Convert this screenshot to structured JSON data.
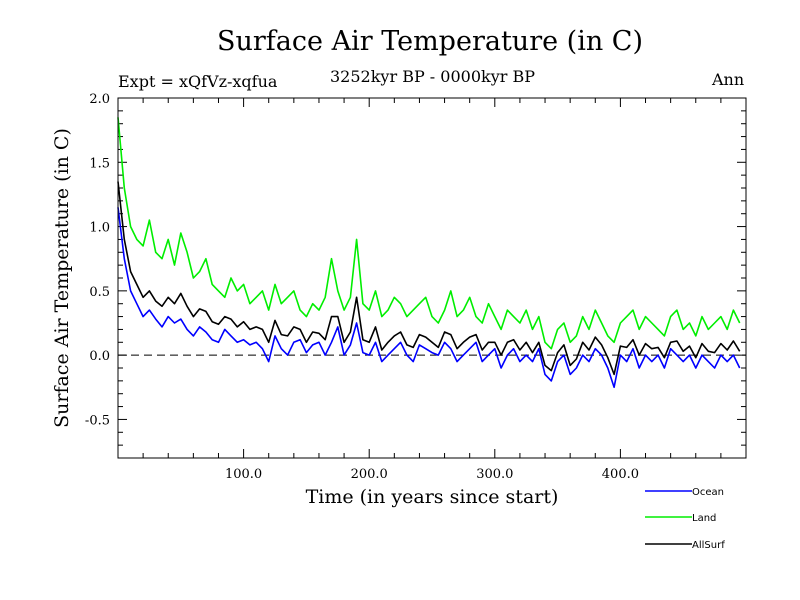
{
  "chart_data": {
    "type": "line",
    "title": "Surface Air Temperature (in C)",
    "experiment": "Expt = xQfVz-xqfua",
    "period": "3252kyr BP - 0000kyr BP",
    "season": "Ann",
    "xlabel": "Time (in years since start)",
    "ylabel": "Surface Air Temperature (in C)",
    "xlim": [
      0,
      500
    ],
    "ylim": [
      -0.8,
      2.0
    ],
    "xticks": [
      100,
      200,
      300,
      400
    ],
    "xtick_labels": [
      "100.0",
      "200.0",
      "300.0",
      "400.0"
    ],
    "yticks": [
      -0.5,
      0.0,
      0.5,
      1.0,
      1.5,
      2.0
    ],
    "ytick_labels": [
      "-0.5",
      "0.0",
      "0.5",
      "1.0",
      "1.5",
      "2.0"
    ],
    "reference_line": 0.0,
    "x": [
      0,
      5,
      10,
      15,
      20,
      25,
      30,
      35,
      40,
      45,
      50,
      55,
      60,
      65,
      70,
      75,
      80,
      85,
      90,
      95,
      100,
      105,
      110,
      115,
      120,
      125,
      130,
      135,
      140,
      145,
      150,
      155,
      160,
      165,
      170,
      175,
      180,
      185,
      190,
      195,
      200,
      205,
      210,
      215,
      220,
      225,
      230,
      235,
      240,
      245,
      250,
      255,
      260,
      265,
      270,
      275,
      280,
      285,
      290,
      295,
      300,
      305,
      310,
      315,
      320,
      325,
      330,
      335,
      340,
      345,
      350,
      355,
      360,
      365,
      370,
      375,
      380,
      385,
      390,
      395,
      400,
      405,
      410,
      415,
      420,
      425,
      430,
      435,
      440,
      445,
      450,
      455,
      460,
      465,
      470,
      475,
      480,
      485,
      490,
      495
    ],
    "series": [
      {
        "name": "Ocean",
        "color": "#0000ff",
        "values": [
          1.15,
          0.75,
          0.5,
          0.4,
          0.3,
          0.35,
          0.28,
          0.22,
          0.3,
          0.25,
          0.28,
          0.2,
          0.15,
          0.22,
          0.18,
          0.12,
          0.1,
          0.2,
          0.15,
          0.1,
          0.12,
          0.08,
          0.1,
          0.05,
          -0.05,
          0.15,
          0.05,
          0.0,
          0.1,
          0.12,
          0.02,
          0.08,
          0.1,
          0.0,
          0.1,
          0.22,
          0.0,
          0.08,
          0.25,
          0.02,
          0.0,
          0.1,
          -0.05,
          0.0,
          0.05,
          0.1,
          0.0,
          -0.05,
          0.08,
          0.05,
          0.02,
          0.0,
          0.1,
          0.05,
          -0.05,
          0.0,
          0.05,
          0.1,
          -0.05,
          0.0,
          0.05,
          -0.1,
          0.0,
          0.05,
          -0.05,
          0.0,
          -0.05,
          0.05,
          -0.15,
          -0.2,
          -0.05,
          0.0,
          -0.15,
          -0.1,
          0.0,
          -0.05,
          0.05,
          0.0,
          -0.1,
          -0.25,
          0.0,
          -0.05,
          0.05,
          -0.1,
          0.0,
          -0.05,
          0.0,
          -0.1,
          0.05,
          0.0,
          -0.05,
          0.0,
          -0.1,
          0.0,
          -0.05,
          -0.1,
          0.0,
          -0.05,
          0.0,
          -0.1
        ]
      },
      {
        "name": "Land",
        "color": "#00ee00",
        "values": [
          1.85,
          1.3,
          1.0,
          0.9,
          0.85,
          1.05,
          0.8,
          0.75,
          0.9,
          0.7,
          0.95,
          0.8,
          0.6,
          0.65,
          0.75,
          0.55,
          0.5,
          0.45,
          0.6,
          0.5,
          0.55,
          0.4,
          0.45,
          0.5,
          0.35,
          0.55,
          0.4,
          0.45,
          0.5,
          0.35,
          0.3,
          0.4,
          0.35,
          0.45,
          0.75,
          0.5,
          0.35,
          0.45,
          0.9,
          0.4,
          0.35,
          0.5,
          0.3,
          0.35,
          0.45,
          0.4,
          0.3,
          0.35,
          0.4,
          0.45,
          0.3,
          0.25,
          0.35,
          0.5,
          0.3,
          0.35,
          0.45,
          0.3,
          0.25,
          0.4,
          0.3,
          0.2,
          0.35,
          0.3,
          0.25,
          0.35,
          0.2,
          0.3,
          0.1,
          0.05,
          0.2,
          0.25,
          0.1,
          0.15,
          0.3,
          0.2,
          0.35,
          0.25,
          0.15,
          0.1,
          0.25,
          0.3,
          0.35,
          0.2,
          0.3,
          0.25,
          0.2,
          0.15,
          0.3,
          0.35,
          0.2,
          0.25,
          0.15,
          0.3,
          0.2,
          0.25,
          0.3,
          0.2,
          0.35,
          0.25
        ]
      },
      {
        "name": "AllSurf",
        "color": "#000000",
        "values": [
          1.35,
          0.9,
          0.65,
          0.55,
          0.45,
          0.5,
          0.42,
          0.38,
          0.45,
          0.4,
          0.48,
          0.38,
          0.3,
          0.36,
          0.34,
          0.26,
          0.24,
          0.3,
          0.28,
          0.22,
          0.26,
          0.2,
          0.22,
          0.2,
          0.1,
          0.27,
          0.16,
          0.15,
          0.22,
          0.2,
          0.1,
          0.18,
          0.17,
          0.12,
          0.3,
          0.3,
          0.1,
          0.18,
          0.45,
          0.12,
          0.1,
          0.22,
          0.04,
          0.1,
          0.15,
          0.18,
          0.08,
          0.06,
          0.16,
          0.14,
          0.1,
          0.06,
          0.18,
          0.16,
          0.05,
          0.1,
          0.14,
          0.16,
          0.04,
          0.1,
          0.1,
          0.0,
          0.1,
          0.12,
          0.04,
          0.1,
          0.02,
          0.1,
          -0.08,
          -0.12,
          0.02,
          0.08,
          -0.08,
          -0.03,
          0.1,
          0.04,
          0.14,
          0.08,
          -0.02,
          -0.15,
          0.07,
          0.06,
          0.12,
          0.0,
          0.09,
          0.05,
          0.06,
          -0.02,
          0.1,
          0.11,
          0.03,
          0.07,
          -0.02,
          0.09,
          0.03,
          0.02,
          0.09,
          0.04,
          0.11,
          0.03
        ]
      }
    ],
    "legend": [
      "Ocean",
      "Land",
      "AllSurf"
    ],
    "legend_position": "bottom-right"
  }
}
